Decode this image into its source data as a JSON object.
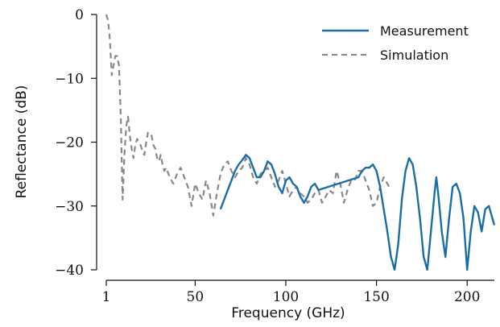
{
  "chart_data": {
    "type": "line",
    "title": "",
    "xlabel": "Frequency (GHz)",
    "ylabel": "Reflectance (dB)",
    "xlim": [
      1,
      215
    ],
    "ylim": [
      -40,
      0
    ],
    "xticks": [
      1,
      50,
      100,
      150,
      200
    ],
    "yticks": [
      0,
      -10,
      -20,
      -30,
      -40
    ],
    "xtick_labels": [
      "1",
      "50",
      "100",
      "150",
      "200"
    ],
    "ytick_labels": [
      "0",
      "−10",
      "−20",
      "−30",
      "−40"
    ],
    "grid": false,
    "legend_position": "top-right",
    "series": [
      {
        "name": "Measurement",
        "color": "#1a6ea6",
        "style": "solid",
        "x": [
          64,
          66,
          68,
          70,
          72,
          74,
          76,
          78,
          80,
          82,
          84,
          86,
          88,
          90,
          92,
          94,
          96,
          98,
          100,
          102,
          104,
          106,
          108,
          110,
          112,
          114,
          116,
          118,
          140,
          142,
          144,
          146,
          148,
          150,
          152,
          154,
          156,
          158,
          160,
          162,
          164,
          166,
          168,
          170,
          172,
          174,
          176,
          178,
          180,
          182,
          183,
          184,
          186,
          188,
          190,
          192,
          194,
          196,
          198,
          200,
          202,
          204,
          206,
          208,
          210,
          212,
          215
        ],
        "y": [
          -30.5,
          -29,
          -27.5,
          -26,
          -24.5,
          -23.5,
          -22.8,
          -22,
          -22.5,
          -24,
          -25.5,
          -25.5,
          -24.5,
          -23,
          -23.5,
          -25,
          -27,
          -28,
          -26,
          -25.5,
          -26.5,
          -27,
          -28.5,
          -29.5,
          -28.5,
          -27,
          -26.5,
          -27.5,
          -25.5,
          -24.5,
          -24,
          -24,
          -23.5,
          -24.5,
          -27,
          -30.5,
          -34,
          -38,
          -40,
          -36,
          -29,
          -24.5,
          -22.5,
          -23.5,
          -27,
          -32,
          -38,
          -40,
          -34,
          -28,
          -25.5,
          -28,
          -34,
          -38,
          -32,
          -27,
          -26.5,
          -28,
          -32,
          -40,
          -34,
          -30,
          -31,
          -34,
          -30.5,
          -30,
          -33
        ]
      },
      {
        "name": "Simulation",
        "color": "#888888",
        "style": "dashed",
        "x": [
          1,
          2,
          3,
          4,
          5,
          6,
          7,
          8,
          9,
          10,
          11,
          12,
          13,
          14,
          15,
          16,
          17,
          18,
          19,
          20,
          21,
          22,
          23,
          24,
          25,
          26,
          27,
          28,
          29,
          30,
          31,
          32,
          33,
          34,
          36,
          38,
          40,
          42,
          44,
          46,
          48,
          50,
          52,
          54,
          56,
          58,
          60,
          62,
          64,
          66,
          68,
          70,
          72,
          74,
          76,
          78,
          80,
          82,
          84,
          86,
          88,
          90,
          92,
          94,
          96,
          98,
          100,
          102,
          104,
          106,
          108,
          110,
          112,
          114,
          116,
          118,
          120,
          122,
          124,
          126,
          128,
          130,
          132,
          134,
          136,
          138,
          140,
          142,
          144,
          146,
          148,
          150,
          152,
          154,
          156,
          158
        ],
        "y": [
          0,
          -1,
          -4,
          -9.5,
          -8,
          -6.5,
          -6.5,
          -8,
          -16,
          -29,
          -22,
          -17.5,
          -16,
          -19,
          -21,
          -22.5,
          -20.5,
          -19.5,
          -20,
          -20.5,
          -21.5,
          -22,
          -20,
          -18.5,
          -18.5,
          -19,
          -20.5,
          -21,
          -22.5,
          -23,
          -22,
          -23.5,
          -24.5,
          -24,
          -25.5,
          -26.5,
          -25,
          -24,
          -25.5,
          -27,
          -30,
          -26.5,
          -28,
          -29,
          -26,
          -28,
          -31.5,
          -28,
          -25,
          -23.5,
          -23,
          -24.5,
          -25.5,
          -24.5,
          -24,
          -22.5,
          -23.5,
          -25.5,
          -26.5,
          -25,
          -24.5,
          -24,
          -25.5,
          -27,
          -26,
          -24.5,
          -26.5,
          -28.5,
          -27.5,
          -27,
          -28,
          -28.5,
          -29.5,
          -29,
          -28,
          -27.5,
          -29.5,
          -28.5,
          -27.5,
          -28,
          -24.5,
          -26.5,
          -29.5,
          -27.5,
          -26,
          -26,
          -24.5,
          -24.5,
          -26,
          -27.5,
          -30,
          -29.5,
          -27,
          -25.5,
          -26.5,
          -27.5
        ]
      }
    ]
  }
}
